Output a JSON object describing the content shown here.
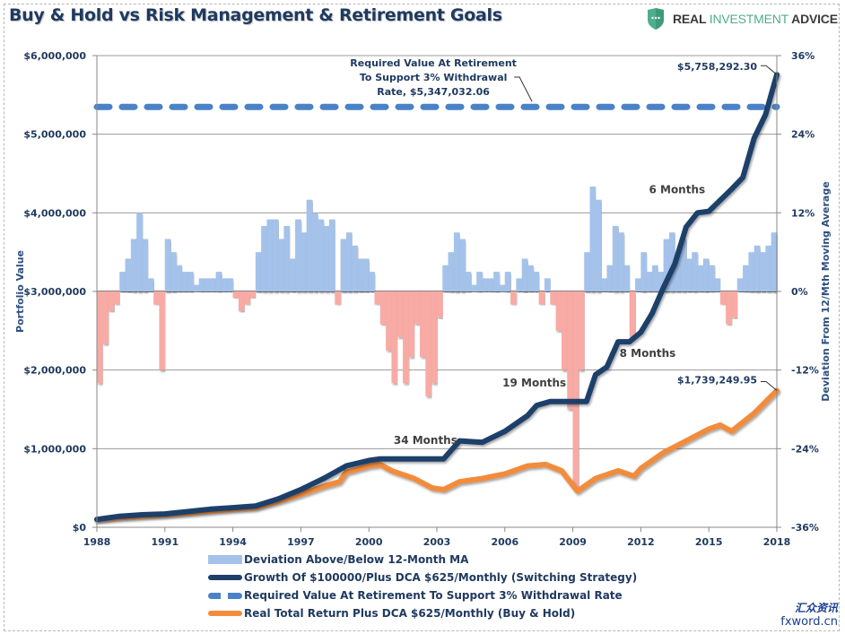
{
  "header": {
    "title": "Buy & Hold vs Risk Management & Retirement Goals",
    "logo_text_1": "REAL ",
    "logo_text_2": "INVESTMENT",
    "logo_text_3": " ADVICE",
    "logo_icon": "shield-chat-icon"
  },
  "watermark": {
    "cn": "汇众资讯",
    "en": "fxword.cn"
  },
  "colors": {
    "positive_bar": "#a4c2ea",
    "negative_bar": "#f8aaa4",
    "switching": "#1f3f6a",
    "required": "#4a82c8",
    "buyhold": "#f28c3c",
    "text": "#1f3a60"
  },
  "chart_data": {
    "type": "line",
    "title": "Buy & Hold vs Risk Management & Retirement Goals",
    "xlabel": "",
    "ylabel": "Portfolio Value",
    "y2label": "Deviation From 12/Mth Moving Average",
    "xlim": [
      1988,
      2018
    ],
    "ylim": [
      0,
      6000000
    ],
    "y2lim": [
      -36,
      36
    ],
    "x_ticks": [
      "1988",
      "1991",
      "1994",
      "1997",
      "2000",
      "2003",
      "2006",
      "2009",
      "2012",
      "2015",
      "2018"
    ],
    "y_ticks": [
      "$0",
      "$1,000,000",
      "$2,000,000",
      "$3,000,000",
      "$4,000,000",
      "$5,000,000",
      "$6,000,000"
    ],
    "y2_ticks": [
      "-36%",
      "-24%",
      "-12%",
      "0%",
      "12%",
      "24%",
      "36%"
    ],
    "grid": "horizontal",
    "legend_position": "bottom",
    "legend": [
      "Deviation Above/Below 12-Month MA",
      "Growth Of $100000/Plus DCA $625/Monthly (Switching Strategy)",
      "Required Value At Retirement To Support 3% Withdrawal Rate",
      "Real Total Return Plus DCA $625/Monthly (Buy & Hold)"
    ],
    "deviation": {
      "name": "Deviation Above/Below 12-Month MA",
      "axis": "right",
      "unit": "%",
      "start": 1988,
      "step": 0.25,
      "values": [
        -14,
        -8,
        -3,
        -2,
        3,
        5,
        8,
        12,
        8,
        2,
        -2,
        -12,
        8,
        6,
        4,
        3,
        3,
        1,
        2,
        2,
        2,
        3,
        2,
        2,
        -1,
        -3,
        -2,
        -1,
        6,
        10,
        11,
        11,
        8,
        10,
        5,
        11,
        9,
        14,
        12,
        11,
        10,
        11,
        -2,
        8,
        9,
        7,
        5,
        5,
        3,
        -2,
        -5,
        -9,
        -14,
        -7,
        -14,
        -10,
        -5,
        -10,
        -16,
        -14,
        -4,
        4,
        6,
        9,
        8,
        3,
        1,
        3,
        2,
        2,
        3,
        1,
        3,
        -2,
        2,
        5,
        4,
        3,
        -2,
        2,
        -2,
        -6,
        -12,
        -18,
        -30,
        -12,
        6,
        16,
        14,
        2,
        4,
        10,
        9,
        4,
        -7,
        2,
        6,
        3,
        4,
        3,
        8,
        9,
        6,
        8,
        5,
        6,
        4,
        5,
        4,
        2,
        -2,
        -5,
        -4,
        2,
        4,
        6,
        7,
        6,
        7,
        9
      ]
    },
    "series": [
      {
        "name": "Growth Of $100000/Plus DCA $625/Monthly (Switching Strategy)",
        "axis": "left",
        "points": [
          [
            1988,
            100000
          ],
          [
            1989,
            140000
          ],
          [
            1990,
            160000
          ],
          [
            1991,
            170000
          ],
          [
            1992,
            200000
          ],
          [
            1993,
            230000
          ],
          [
            1994,
            250000
          ],
          [
            1995,
            270000
          ],
          [
            1996,
            360000
          ],
          [
            1997,
            480000
          ],
          [
            1998,
            620000
          ],
          [
            1999,
            780000
          ],
          [
            2000,
            850000
          ],
          [
            2000.5,
            870000
          ],
          [
            2003.3,
            870000
          ],
          [
            2004,
            1100000
          ],
          [
            2005,
            1080000
          ],
          [
            2006,
            1220000
          ],
          [
            2007,
            1420000
          ],
          [
            2007.4,
            1550000
          ],
          [
            2008,
            1600000
          ],
          [
            2009.6,
            1600000
          ],
          [
            2010,
            1940000
          ],
          [
            2010.5,
            2040000
          ],
          [
            2011,
            2360000
          ],
          [
            2011.5,
            2360000
          ],
          [
            2012,
            2480000
          ],
          [
            2012.5,
            2720000
          ],
          [
            2013,
            3050000
          ],
          [
            2013.5,
            3350000
          ],
          [
            2014,
            3820000
          ],
          [
            2014.5,
            4000000
          ],
          [
            2015,
            4020000
          ],
          [
            2016,
            4300000
          ],
          [
            2016.5,
            4450000
          ],
          [
            2017,
            4950000
          ],
          [
            2017.5,
            5250000
          ],
          [
            2018,
            5758292.3
          ]
        ]
      },
      {
        "name": "Required Value At Retirement To Support 3% Withdrawal Rate",
        "axis": "left",
        "points": [
          [
            1988,
            5347032.06
          ],
          [
            2018,
            5347032.06
          ]
        ]
      },
      {
        "name": "Real Total Return Plus DCA $625/Monthly (Buy & Hold)",
        "axis": "left",
        "points": [
          [
            1988,
            100000
          ],
          [
            1990,
            140000
          ],
          [
            1992,
            180000
          ],
          [
            1994,
            230000
          ],
          [
            1995,
            250000
          ],
          [
            1996,
            330000
          ],
          [
            1997,
            420000
          ],
          [
            1998,
            520000
          ],
          [
            1998.7,
            580000
          ],
          [
            1999,
            700000
          ],
          [
            2000,
            780000
          ],
          [
            2000.5,
            800000
          ],
          [
            2001,
            720000
          ],
          [
            2002,
            620000
          ],
          [
            2002.8,
            500000
          ],
          [
            2003.3,
            480000
          ],
          [
            2004,
            580000
          ],
          [
            2005,
            620000
          ],
          [
            2006,
            680000
          ],
          [
            2007,
            780000
          ],
          [
            2007.8,
            800000
          ],
          [
            2008.5,
            720000
          ],
          [
            2009.2,
            460000
          ],
          [
            2010,
            620000
          ],
          [
            2011,
            720000
          ],
          [
            2011.7,
            650000
          ],
          [
            2012,
            750000
          ],
          [
            2013,
            950000
          ],
          [
            2014,
            1100000
          ],
          [
            2015,
            1250000
          ],
          [
            2015.5,
            1300000
          ],
          [
            2016,
            1220000
          ],
          [
            2017,
            1450000
          ],
          [
            2018,
            1739249.95
          ]
        ]
      }
    ],
    "annotations": [
      {
        "text_lines": [
          "Required Value At Retirement",
          "To Support 3% Withdrawal",
          "Rate, $5,347,032.06"
        ],
        "x": 2007.2,
        "y": 5347032.06
      },
      {
        "text": "$5,758,292.30",
        "x": 2018,
        "y": 5758292.3
      },
      {
        "text": "$1,739,249.95",
        "x": 2018,
        "y": 1739249.95
      },
      {
        "text": "6 Months",
        "x": 2013.6,
        "y": 4250000
      },
      {
        "text": "8 Months",
        "x": 2012.3,
        "y": 2170000
      },
      {
        "text": "19 Months",
        "x": 2007.3,
        "y": 1790000
      },
      {
        "text": "34 Months",
        "x": 2002.5,
        "y": 1060000
      }
    ]
  }
}
